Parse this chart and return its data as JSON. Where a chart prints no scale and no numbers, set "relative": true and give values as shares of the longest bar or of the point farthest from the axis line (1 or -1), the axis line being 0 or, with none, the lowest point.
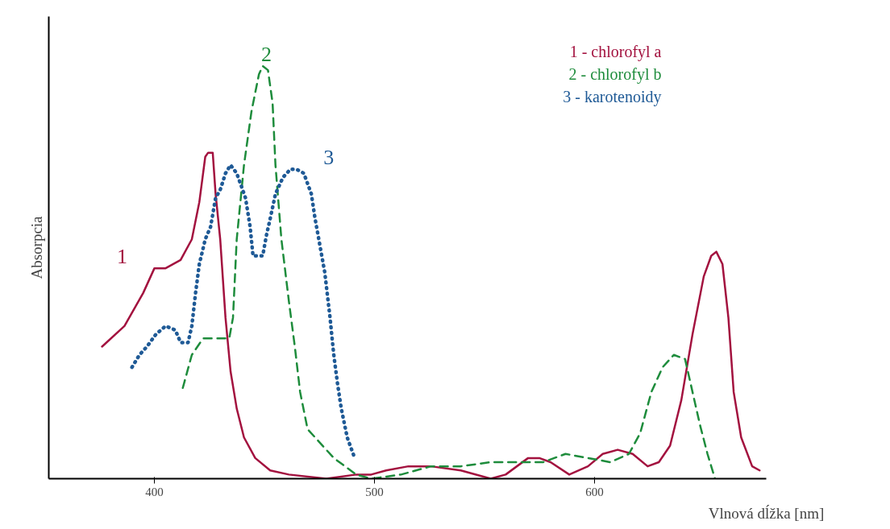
{
  "chart_data": {
    "type": "line",
    "relative": true,
    "xlabel": "Vlnová dĺžka [nm]",
    "ylabel": "Absorpcia",
    "xlim": [
      352,
      678
    ],
    "xticks": [
      400,
      500,
      600
    ],
    "tick_labels": "x",
    "legend": "top right",
    "series": [
      {
        "name": "1 - chlorofyl a",
        "color": "#a3123f",
        "line_style": "solid",
        "x": [
          376.2,
          386.4,
          394.9,
          400,
          405.1,
          411.9,
          417.0,
          420.4,
          423.1,
          424.4,
          426.5,
          427.8,
          429.9,
          432.3,
          434.6,
          437.4,
          440.7,
          445.8,
          452.6,
          461.1,
          478.1,
          491.7,
          498.5,
          505.3,
          515.4,
          525.6,
          539.2,
          552.8,
          559.6,
          569.8,
          574.9,
          580.0,
          588.5,
          597.0,
          603.7,
          610.5,
          617.3,
          624.1,
          629.2,
          634.3,
          639.4,
          644.5,
          649.6,
          653.0,
          655.3,
          658.1,
          660.8,
          663.2,
          666.6,
          671.6,
          675.0
        ],
        "values": [
          0.32,
          0.37,
          0.45,
          0.51,
          0.51,
          0.53,
          0.58,
          0.67,
          0.78,
          0.79,
          0.79,
          0.69,
          0.58,
          0.39,
          0.26,
          0.17,
          0.1,
          0.05,
          0.02,
          0.01,
          0.0,
          0.01,
          0.01,
          0.02,
          0.03,
          0.03,
          0.02,
          0.0,
          0.01,
          0.05,
          0.05,
          0.04,
          0.01,
          0.03,
          0.06,
          0.07,
          0.06,
          0.03,
          0.04,
          0.08,
          0.19,
          0.35,
          0.49,
          0.54,
          0.55,
          0.52,
          0.39,
          0.21,
          0.1,
          0.03,
          0.02
        ]
      },
      {
        "name": "2 - chlorofyl b",
        "color": "#1e8c3c",
        "line_style": "dashed",
        "x": [
          412.9,
          417.0,
          422.1,
          428.9,
          434.0,
          435.7,
          437.4,
          440.7,
          444.1,
          447.5,
          449.2,
          451.6,
          453.7,
          455.0,
          457.7,
          461.1,
          463.8,
          466.2,
          469.6,
          474.7,
          481.5,
          491.7,
          498.5,
          512.1,
          525.6,
          539.2,
          552.8,
          566.4,
          576.6,
          586.8,
          597.0,
          607.1,
          615.6,
          620.7,
          625.8,
          630.9,
          636.0,
          641.1,
          644.5,
          647.9,
          651.3,
          654.7
        ],
        "values": [
          0.22,
          0.3,
          0.34,
          0.34,
          0.34,
          0.39,
          0.58,
          0.76,
          0.89,
          0.98,
          1.0,
          0.99,
          0.91,
          0.76,
          0.58,
          0.43,
          0.32,
          0.21,
          0.12,
          0.09,
          0.05,
          0.01,
          0.0,
          0.01,
          0.03,
          0.03,
          0.04,
          0.04,
          0.04,
          0.06,
          0.05,
          0.04,
          0.06,
          0.11,
          0.21,
          0.27,
          0.3,
          0.29,
          0.21,
          0.13,
          0.06,
          0.0
        ]
      },
      {
        "name": "3 - karotenoidy",
        "color": "#1f5a96",
        "line_style": "dotted",
        "x": [
          389.8,
          393.2,
          396.6,
          400.7,
          405.1,
          409.5,
          411.9,
          415.3,
          417.0,
          418.7,
          420.4,
          423.1,
          425.5,
          427.8,
          429.9,
          432.3,
          434.6,
          437.4,
          440.1,
          441.4,
          443.5,
          444.8,
          449.2,
          450.9,
          452.6,
          455.0,
          458.4,
          461.8,
          464.5,
          467.9,
          471.3,
          473.0,
          474.7,
          477.4,
          479.8,
          481.5,
          483.2,
          484.9,
          487.6,
          491.0
        ],
        "values": [
          0.27,
          0.3,
          0.32,
          0.35,
          0.37,
          0.36,
          0.33,
          0.33,
          0.37,
          0.45,
          0.52,
          0.58,
          0.61,
          0.68,
          0.7,
          0.74,
          0.76,
          0.74,
          0.7,
          0.68,
          0.61,
          0.54,
          0.54,
          0.59,
          0.63,
          0.69,
          0.73,
          0.75,
          0.75,
          0.74,
          0.69,
          0.63,
          0.58,
          0.5,
          0.39,
          0.3,
          0.23,
          0.17,
          0.1,
          0.05
        ]
      }
    ],
    "annotations": [
      {
        "text": "1",
        "x": 400,
        "y": 0.51
      },
      {
        "text": "2",
        "x": 450.9,
        "y": 1.0
      },
      {
        "text": "3",
        "x": 464.5,
        "y": 0.75
      }
    ]
  }
}
